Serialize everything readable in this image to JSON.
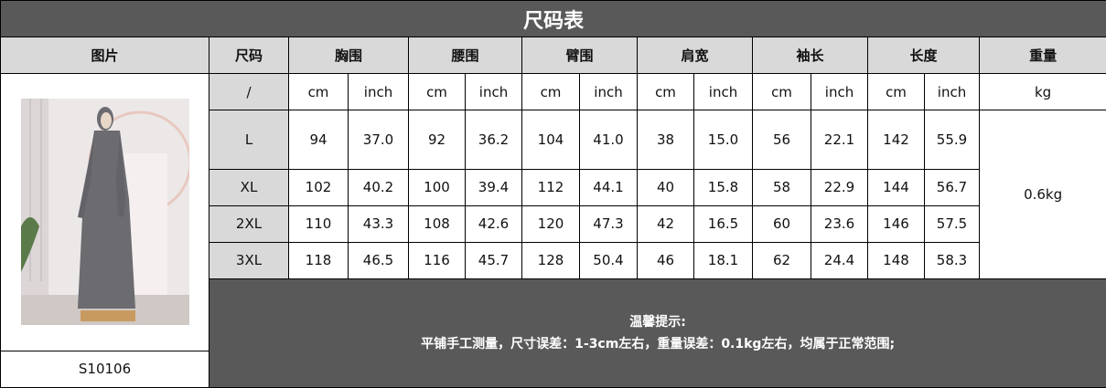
{
  "title": "尺码表",
  "headers": [
    "图片",
    "尺码",
    "胸围",
    "腰围",
    "臂围",
    "肩宽",
    "袖长",
    "长度",
    "重量"
  ],
  "units": {
    "size": "/",
    "pairs": [
      "cm",
      "inch",
      "cm",
      "inch",
      "cm",
      "inch",
      "cm",
      "inch",
      "cm",
      "inch",
      "cm",
      "inch"
    ],
    "weight": "kg"
  },
  "rows": [
    {
      "size": "L",
      "values": [
        "94",
        "37.0",
        "92",
        "36.2",
        "104",
        "41.0",
        "38",
        "15.0",
        "56",
        "22.1",
        "142",
        "55.9"
      ]
    },
    {
      "size": "XL",
      "values": [
        "102",
        "40.2",
        "100",
        "39.4",
        "112",
        "44.1",
        "40",
        "15.8",
        "58",
        "22.9",
        "144",
        "56.7"
      ]
    },
    {
      "size": "2XL",
      "values": [
        "110",
        "43.3",
        "108",
        "42.6",
        "120",
        "47.3",
        "42",
        "16.5",
        "60",
        "23.6",
        "146",
        "57.5"
      ]
    },
    {
      "size": "3XL",
      "values": [
        "118",
        "46.5",
        "116",
        "45.7",
        "128",
        "50.4",
        "46",
        "18.1",
        "62",
        "24.4",
        "148",
        "58.3"
      ]
    }
  ],
  "weight": "0.6kg",
  "product_code": "S10106",
  "note": {
    "title": "温馨提示:",
    "text": "平铺手工测量，尺寸误差：1-3cm左右，重量误差：0.1kg左右，均属于正常范围;"
  },
  "colors": {
    "header_dark": "#595959",
    "header_light": "#d9d9d9",
    "dress": "#6b6b70"
  }
}
